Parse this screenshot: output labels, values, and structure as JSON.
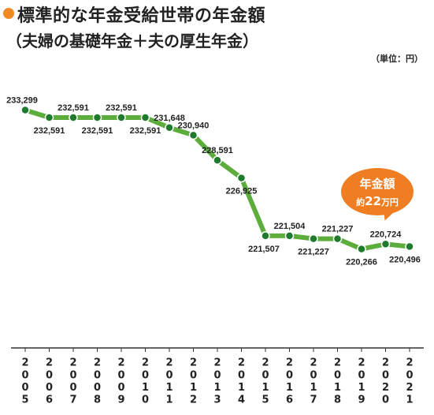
{
  "header": {
    "title": "標準的な年金受給世帯の年金額",
    "subtitle": "（夫婦の基礎年金＋夫の厚生年金）",
    "unit": "（単位：円）"
  },
  "callout": {
    "title": "年金額",
    "prefix": "約",
    "amount": "22",
    "suffix": "万円"
  },
  "colors": {
    "line": "#5cad3c",
    "marker": "#1f7a2e",
    "accent": "#ef7d22"
  },
  "chart_data": {
    "type": "line",
    "title": "標準的な年金受給世帯の年金額",
    "categories": [
      "2005",
      "2006",
      "2007",
      "2008",
      "2009",
      "2010",
      "2011",
      "2012",
      "2013",
      "2014",
      "2015",
      "2016",
      "2017",
      "2018",
      "2019",
      "2020",
      "2021"
    ],
    "series": [
      {
        "values": [
          233299,
          232591,
          232591,
          232591,
          232591,
          232591,
          231648,
          230940,
          228591,
          226925,
          221507,
          221504,
          221227,
          221227,
          220266,
          220724,
          220496
        ]
      }
    ],
    "labels": [
      "233,299",
      "232,591",
      "232,591",
      "232,591",
      "232,591",
      "232,591",
      "231,648",
      "230,940",
      "228,591",
      "226,925",
      "221,507",
      "221,504",
      "221,227",
      "221,227",
      "220,266",
      "220,724",
      "220,496"
    ],
    "ylim": [
      219200,
      234000
    ],
    "grid": false,
    "legend": "none"
  }
}
